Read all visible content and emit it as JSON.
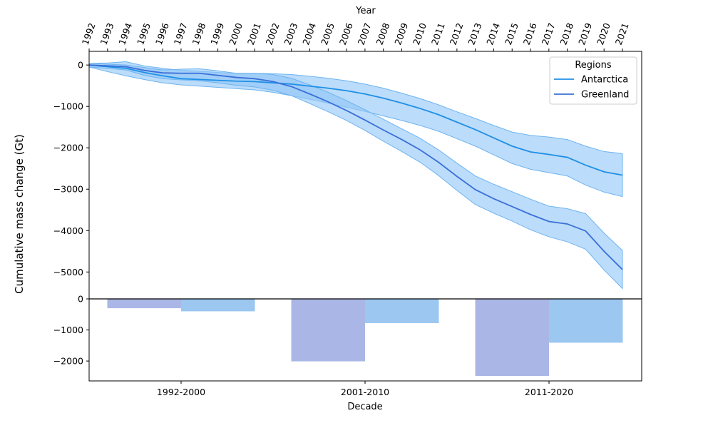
{
  "chart_data": [
    {
      "type": "line",
      "panel": "top",
      "top_xlabel": "Year",
      "ylabel": "Cumulative mass change (Gt)",
      "x": [
        1992,
        1993,
        1994,
        1995,
        1996,
        1997,
        1998,
        1999,
        2000,
        2001,
        2002,
        2003,
        2004,
        2005,
        2006,
        2007,
        2008,
        2009,
        2010,
        2011,
        2012,
        2013,
        2014,
        2015,
        2016,
        2017,
        2018,
        2019,
        2020,
        2021
      ],
      "x_tick_labels": [
        "1992",
        "1993",
        "1994",
        "1995",
        "1996",
        "1997",
        "1998",
        "1999",
        "2000",
        "2001",
        "2002",
        "2003",
        "2004",
        "2005",
        "2006",
        "2007",
        "2008",
        "2009",
        "2010",
        "2011",
        "2012",
        "2013",
        "2014",
        "2015",
        "2016",
        "2017",
        "2018",
        "2019",
        "2020",
        "2021"
      ],
      "ylim": [
        -5650,
        330
      ],
      "yticks": [
        0,
        -1000,
        -2000,
        -3000,
        -4000,
        -5000
      ],
      "ytick_labels": [
        "0",
        "−1000",
        "−2000",
        "−3000",
        "−4000",
        "−5000"
      ],
      "legend": {
        "title": "Regions",
        "placement": "top-right"
      },
      "series": [
        {
          "name": "Antarctica",
          "color": "#1f8fe6",
          "values": [
            0,
            -40,
            -80,
            -180,
            -260,
            -330,
            -350,
            -370,
            -390,
            -400,
            -430,
            -460,
            -510,
            -560,
            -620,
            -700,
            -800,
            -920,
            -1050,
            -1200,
            -1380,
            -1560,
            -1760,
            -1960,
            -2100,
            -2160,
            -2230,
            -2420,
            -2580,
            -2660
          ],
          "lower": [
            -50,
            -160,
            -260,
            -350,
            -430,
            -480,
            -510,
            -540,
            -570,
            -600,
            -660,
            -740,
            -830,
            -920,
            -1020,
            -1120,
            -1230,
            -1340,
            -1460,
            -1600,
            -1780,
            -1960,
            -2170,
            -2380,
            -2520,
            -2600,
            -2680,
            -2900,
            -3070,
            -3180
          ],
          "upper": [
            40,
            50,
            80,
            -20,
            -80,
            -130,
            -150,
            -180,
            -200,
            -200,
            -210,
            -230,
            -270,
            -320,
            -380,
            -460,
            -560,
            -680,
            -810,
            -960,
            -1130,
            -1290,
            -1460,
            -1620,
            -1700,
            -1740,
            -1800,
            -1960,
            -2090,
            -2140
          ]
        },
        {
          "name": "Greenland",
          "color": "#3a6fd8",
          "values": [
            0,
            -20,
            -40,
            -130,
            -190,
            -200,
            -200,
            -250,
            -300,
            -330,
            -400,
            -520,
            -700,
            -890,
            -1100,
            -1330,
            -1570,
            -1800,
            -2050,
            -2350,
            -2690,
            -3010,
            -3230,
            -3420,
            -3610,
            -3780,
            -3840,
            -4010,
            -4500,
            -4940
          ],
          "lower": [
            -50,
            -80,
            -120,
            -250,
            -330,
            -360,
            -380,
            -430,
            -490,
            -530,
            -610,
            -740,
            -930,
            -1130,
            -1340,
            -1580,
            -1840,
            -2090,
            -2350,
            -2670,
            -3030,
            -3370,
            -3580,
            -3770,
            -3980,
            -4150,
            -4270,
            -4450,
            -4950,
            -5400
          ],
          "upper": [
            40,
            20,
            0,
            -60,
            -120,
            -100,
            -90,
            -140,
            -200,
            -200,
            -230,
            -320,
            -480,
            -660,
            -860,
            -1080,
            -1310,
            -1540,
            -1770,
            -2050,
            -2370,
            -2680,
            -2880,
            -3060,
            -3240,
            -3410,
            -3470,
            -3590,
            -4060,
            -4480
          ]
        }
      ]
    },
    {
      "type": "bar",
      "panel": "bottom",
      "xlabel": "Decade",
      "categories": [
        "1992-2000",
        "2001-2010",
        "2011-2020"
      ],
      "ylim": [
        -2640,
        0
      ],
      "yticks": [
        0,
        -1000,
        -2000
      ],
      "ytick_labels": [
        "0",
        "−1000",
        "−2000"
      ],
      "series": [
        {
          "name": "",
          "color": "#aab7e6",
          "values": [
            -300,
            -2010,
            -2480
          ]
        },
        {
          "name": "",
          "color": "#9bc7f0",
          "values": [
            -400,
            -780,
            -1410
          ]
        }
      ]
    }
  ]
}
